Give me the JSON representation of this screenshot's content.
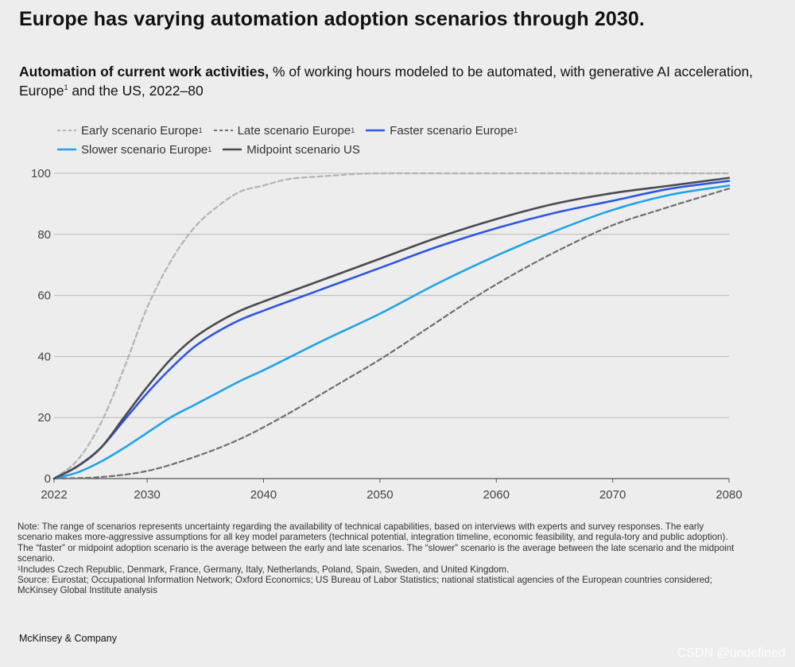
{
  "headline": "Europe has varying automation adoption scenarios through 2030.",
  "subtitle": {
    "bold": "Automation of current work activities,",
    "rest_pre": " % of working hours modeled to be automated, with generative AI acceleration, Europe",
    "footnote_mark": "1",
    "rest_post": " and the US, 2022–80"
  },
  "legend": [
    {
      "label": "Early scenario Europe",
      "sup": "1"
    },
    {
      "label": "Late scenario Europe",
      "sup": "1"
    },
    {
      "label": "Faster scenario Europe",
      "sup": "1"
    },
    {
      "label": "Slower scenario Europe",
      "sup": "1"
    },
    {
      "label": "Midpoint scenario US",
      "sup": ""
    }
  ],
  "chart_data": {
    "type": "line",
    "title": "Automation of current work activities",
    "xlabel": "",
    "ylabel": "% of working hours modeled to be automated",
    "xlim": [
      2022,
      2080
    ],
    "ylim": [
      0,
      100
    ],
    "xticks": [
      2022,
      2030,
      2040,
      2050,
      2060,
      2070,
      2080
    ],
    "yticks": [
      0,
      20,
      40,
      60,
      80,
      100
    ],
    "grid": "horizontal",
    "series": [
      {
        "name": "Early scenario Europe",
        "color": "#b3b3b3",
        "dash": "dashed",
        "x": [
          2022,
          2024,
          2026,
          2028,
          2030,
          2032,
          2034,
          2036,
          2038,
          2040,
          2042,
          2045,
          2050,
          2060,
          2070,
          2080
        ],
        "y": [
          0,
          6,
          18,
          36,
          56,
          71,
          82,
          89,
          94,
          96,
          98,
          99,
          100,
          100,
          100,
          100
        ]
      },
      {
        "name": "Late scenario Europe",
        "color": "#6e6e6e",
        "dash": "dashed",
        "x": [
          2022,
          2026,
          2030,
          2034,
          2038,
          2042,
          2046,
          2050,
          2054,
          2058,
          2062,
          2066,
          2070,
          2074,
          2080
        ],
        "y": [
          0,
          0.5,
          2.5,
          7,
          13,
          21,
          30,
          39,
          49,
          59,
          68,
          76,
          83,
          88,
          95
        ]
      },
      {
        "name": "Faster scenario Europe",
        "color": "#2f56e0",
        "dash": "solid",
        "x": [
          2022,
          2024,
          2026,
          2028,
          2030,
          2032,
          2034,
          2036,
          2038,
          2040,
          2045,
          2050,
          2055,
          2060,
          2065,
          2070,
          2075,
          2080
        ],
        "y": [
          0,
          4,
          10,
          19,
          28,
          36,
          43,
          48,
          52,
          55,
          62,
          69,
          76,
          82,
          87,
          91,
          95,
          97.5
        ]
      },
      {
        "name": "Slower scenario Europe",
        "color": "#1fa3e8",
        "dash": "solid",
        "x": [
          2022,
          2024,
          2026,
          2028,
          2030,
          2032,
          2034,
          2036,
          2038,
          2040,
          2045,
          2050,
          2055,
          2060,
          2065,
          2070,
          2075,
          2080
        ],
        "y": [
          0,
          2,
          5.5,
          10,
          15,
          20,
          24,
          28,
          32,
          35.5,
          45,
          54,
          64,
          73,
          81,
          88,
          93,
          96
        ]
      },
      {
        "name": "Midpoint scenario US",
        "color": "#4a4a52",
        "dash": "solid",
        "x": [
          2022,
          2024,
          2026,
          2028,
          2030,
          2032,
          2034,
          2036,
          2038,
          2040,
          2045,
          2050,
          2055,
          2060,
          2065,
          2070,
          2075,
          2080
        ],
        "y": [
          0,
          4,
          10,
          20,
          30,
          39,
          46,
          51,
          55,
          58,
          65,
          72,
          79,
          85,
          90,
          93.5,
          96,
          98.5
        ]
      }
    ]
  },
  "notes": {
    "note": "Note: The range of scenarios represents uncertainty regarding the availability of technical capabilities, based on interviews with experts and survey responses. The early scenario makes more-aggressive assumptions for all key model parameters (technical potential, integration timeline, economic feasibility, and regula-tory and public adoption). The “faster” or midpoint adoption scenario is the average between the early and late scenarios. The “slower” scenario is the average between the late scenario and the midpoint scenario.",
    "footnote": "¹Includes Czech Republic, Denmark, France, Germany, Italy, Netherlands, Poland, Spain, Sweden, and United Kingdom.",
    "source": "Source: Eurostat; Occupational Information Network; Oxford Economics; US Bureau of Labor Statistics; national statistical agencies of the European countries considered; McKinsey Global Institute analysis"
  },
  "brand": "McKinsey & Company",
  "watermark": "CSDN @undefined"
}
